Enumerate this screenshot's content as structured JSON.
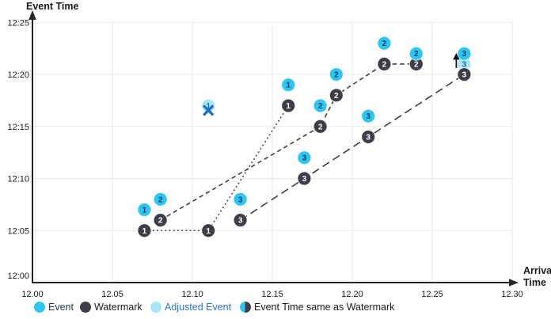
{
  "axis_titles": {
    "y": "Event Time",
    "x_line1": "Arrival",
    "x_line2": "Time"
  },
  "colors": {
    "event": "#2EC6F0",
    "watermark": "#3E3E46",
    "adjusted": "#A9E6F8",
    "grid": "#E9E9E9",
    "axis": "#262626",
    "connector": "#3F3F3F",
    "event_number": "#123C66",
    "watermark_number": "#FFFFFF",
    "adjusted_number": "#2268B8",
    "x_marker": "#1E73BE",
    "arrow": "#111111",
    "tick_text": "#1A1A1A"
  },
  "legend": [
    {
      "label": "Event",
      "swatch": "event",
      "text_color": "#1F3864"
    },
    {
      "label": "Watermark",
      "swatch": "watermark",
      "text_color": "#1A1A1A"
    },
    {
      "label": "Adjusted Event",
      "swatch": "adjusted",
      "text_color": "#2E74C9"
    },
    {
      "label": "Event Time same as Watermark",
      "swatch": "half",
      "text_color": "#1A1A1A"
    }
  ],
  "chart_data": {
    "type": "scatter",
    "title": "",
    "xlabel": "Arrival Time",
    "ylabel": "Event Time",
    "x_axis": {
      "ticks": [
        "12.00",
        "12.05",
        "12.10",
        "12.15",
        "12.20",
        "12.25",
        "12.30"
      ],
      "range": [
        12.0,
        12.3
      ]
    },
    "y_axis": {
      "ticks": [
        "12:00",
        "12:05",
        "12:10",
        "12:15",
        "12:20",
        "12:25"
      ],
      "range": [
        "12:00",
        "12:25"
      ]
    },
    "grid": true,
    "legend_position": "bottom",
    "series": [
      {
        "id": 1,
        "line_style": "dotted",
        "watermarks": [
          {
            "arrival": 12.07,
            "event_time": "12:05"
          },
          {
            "arrival": 12.11,
            "event_time": "12:05"
          },
          {
            "arrival": 12.16,
            "event_time": "12:17"
          }
        ],
        "events": [
          {
            "arrival": 12.07,
            "event_time": "12:07"
          },
          {
            "arrival": 12.16,
            "event_time": "12:19"
          }
        ],
        "adjusted_events": [
          {
            "arrival": 12.11,
            "event_time": "12:17",
            "marker": "x"
          }
        ]
      },
      {
        "id": 2,
        "line_style": "dashed",
        "watermarks": [
          {
            "arrival": 12.08,
            "event_time": "12:06"
          },
          {
            "arrival": 12.18,
            "event_time": "12:15"
          },
          {
            "arrival": 12.19,
            "event_time": "12:18"
          },
          {
            "arrival": 12.22,
            "event_time": "12:21"
          },
          {
            "arrival": 12.24,
            "event_time": "12:21"
          }
        ],
        "events": [
          {
            "arrival": 12.08,
            "event_time": "12:08"
          },
          {
            "arrival": 12.18,
            "event_time": "12:17"
          },
          {
            "arrival": 12.19,
            "event_time": "12:20"
          },
          {
            "arrival": 12.22,
            "event_time": "12:23"
          },
          {
            "arrival": 12.24,
            "event_time": "12:22"
          }
        ],
        "adjusted_events": []
      },
      {
        "id": 3,
        "line_style": "longdash",
        "watermarks": [
          {
            "arrival": 12.13,
            "event_time": "12:06"
          },
          {
            "arrival": 12.17,
            "event_time": "12:10"
          },
          {
            "arrival": 12.21,
            "event_time": "12:14"
          },
          {
            "arrival": 12.27,
            "event_time": "12:20"
          }
        ],
        "events": [
          {
            "arrival": 12.13,
            "event_time": "12:08"
          },
          {
            "arrival": 12.17,
            "event_time": "12:12"
          },
          {
            "arrival": 12.21,
            "event_time": "12:16"
          },
          {
            "arrival": 12.27,
            "event_time": "12:22"
          }
        ],
        "adjusted_events": [
          {
            "arrival": 12.27,
            "event_time": "12:21",
            "marker": "up-arrow"
          }
        ]
      }
    ]
  }
}
